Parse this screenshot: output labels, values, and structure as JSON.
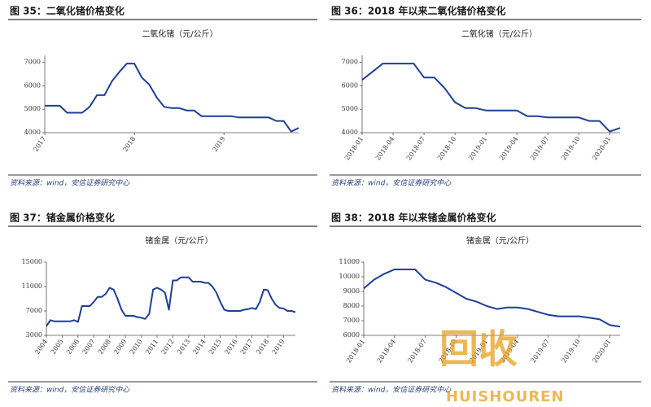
{
  "chart_data": [
    {
      "type": "line",
      "title": "图 35：二氧化锗价格变化",
      "subtitle": "二氧化锗（元/公斤）",
      "source": "资料来源：wind，安信证券研究中心",
      "categories": [
        "2017",
        null,
        null,
        null,
        null,
        null,
        null,
        null,
        null,
        null,
        null,
        null,
        "2018",
        null,
        null,
        null,
        null,
        null,
        null,
        null,
        null,
        null,
        null,
        null,
        "2019",
        null,
        null,
        null,
        null,
        null,
        null,
        null,
        null,
        null,
        null
      ],
      "values": [
        5150,
        5150,
        5150,
        4850,
        4850,
        4850,
        5100,
        5600,
        5600,
        6200,
        6600,
        6950,
        6950,
        6350,
        6050,
        5500,
        5100,
        5050,
        5050,
        4950,
        4950,
        4700,
        4700,
        4700,
        4700,
        4700,
        4650,
        4650,
        4650,
        4650,
        4650,
        4500,
        4500,
        4050,
        4200
      ],
      "color": "#1f3f94",
      "ylim": [
        4000,
        7300
      ],
      "yticks": [
        4000,
        5000,
        6000,
        7000
      ]
    },
    {
      "type": "line",
      "title": "图 36：2018 年以来二氧化锗价格变化",
      "subtitle": "二氧化锗（元/公斤）",
      "source": "资料来源：wind，安信证券研究中心",
      "categories": [
        "2018-01",
        null,
        null,
        "2018-04",
        null,
        null,
        "2018-07",
        null,
        null,
        "2018-10",
        null,
        null,
        "2019-01",
        null,
        null,
        "2019-04",
        null,
        null,
        "2019-07",
        null,
        null,
        "2019-10",
        null,
        null,
        "2020-01",
        null
      ],
      "values": [
        6250,
        6600,
        6950,
        6950,
        6950,
        6950,
        6350,
        6350,
        5900,
        5300,
        5050,
        5050,
        4950,
        4950,
        4950,
        4950,
        4700,
        4700,
        4650,
        4650,
        4650,
        4650,
        4500,
        4500,
        4050,
        4200
      ],
      "color": "#1f3f94",
      "ylim": [
        4000,
        7300
      ],
      "yticks": [
        4000,
        5000,
        6000,
        7000
      ]
    },
    {
      "type": "line",
      "title": "图 37：锗金属价格变化",
      "subtitle": "锗金属（元/公斤）",
      "source": "资料来源：wind，安信证券研究中心",
      "categories": [
        "2004",
        null,
        null,
        null,
        "2005",
        null,
        null,
        null,
        "2006",
        null,
        null,
        null,
        "2007",
        null,
        null,
        null,
        "2008",
        null,
        null,
        null,
        "2009",
        null,
        null,
        null,
        "2010",
        null,
        null,
        null,
        "2011",
        null,
        null,
        null,
        "2012",
        null,
        null,
        null,
        "2013",
        null,
        null,
        null,
        "2014",
        null,
        null,
        null,
        "2015",
        null,
        null,
        null,
        "2016",
        null,
        null,
        null,
        "2017",
        null,
        null,
        null,
        "2018",
        null,
        null,
        null,
        "2019",
        null,
        null,
        null
      ],
      "values": [
        4500,
        5500,
        5300,
        5300,
        5300,
        5300,
        5300,
        5500,
        5200,
        7800,
        7800,
        7800,
        8500,
        9300,
        9300,
        9800,
        10800,
        10500,
        9000,
        7200,
        6200,
        6200,
        6200,
        6000,
        5900,
        5700,
        6500,
        10500,
        10800,
        10500,
        10000,
        7200,
        12000,
        12000,
        12500,
        12500,
        12500,
        11800,
        11800,
        11800,
        11600,
        11600,
        11000,
        10000,
        8500,
        7200,
        7000,
        7000,
        7000,
        7000,
        7200,
        7300,
        7500,
        7300,
        8500,
        10500,
        10400,
        9000,
        8000,
        7500,
        7400,
        7000,
        7000,
        6800
      ],
      "color": "#1f3f94",
      "ylim": [
        3000,
        15000
      ],
      "yticks": [
        3000,
        7000,
        11000,
        15000
      ]
    },
    {
      "type": "line",
      "title": "图 38：2018 年以来锗金属价格变化",
      "subtitle": "锗金属（元/公斤）",
      "source": "资料来源：wind，安信证券研究中心",
      "categories": [
        "2018-01",
        null,
        null,
        "2018-04",
        null,
        null,
        "2018-07",
        null,
        null,
        "2018-10",
        null,
        null,
        "2019-01",
        null,
        null,
        "2019-04",
        null,
        null,
        "2019-07",
        null,
        null,
        "2019-10",
        null,
        null,
        "2020-01",
        null
      ],
      "values": [
        9200,
        9800,
        10200,
        10500,
        10500,
        10500,
        9800,
        9600,
        9300,
        8900,
        8500,
        8300,
        8000,
        7800,
        7900,
        7900,
        7800,
        7600,
        7400,
        7300,
        7300,
        7300,
        7200,
        7100,
        6700,
        6600
      ],
      "color": "#1f3f94",
      "ylim": [
        6000,
        11000
      ],
      "yticks": [
        6000,
        7000,
        8000,
        9000,
        10000,
        11000
      ]
    }
  ],
  "watermark": {
    "logo": "回收",
    "text": "HUISHOUREN"
  }
}
